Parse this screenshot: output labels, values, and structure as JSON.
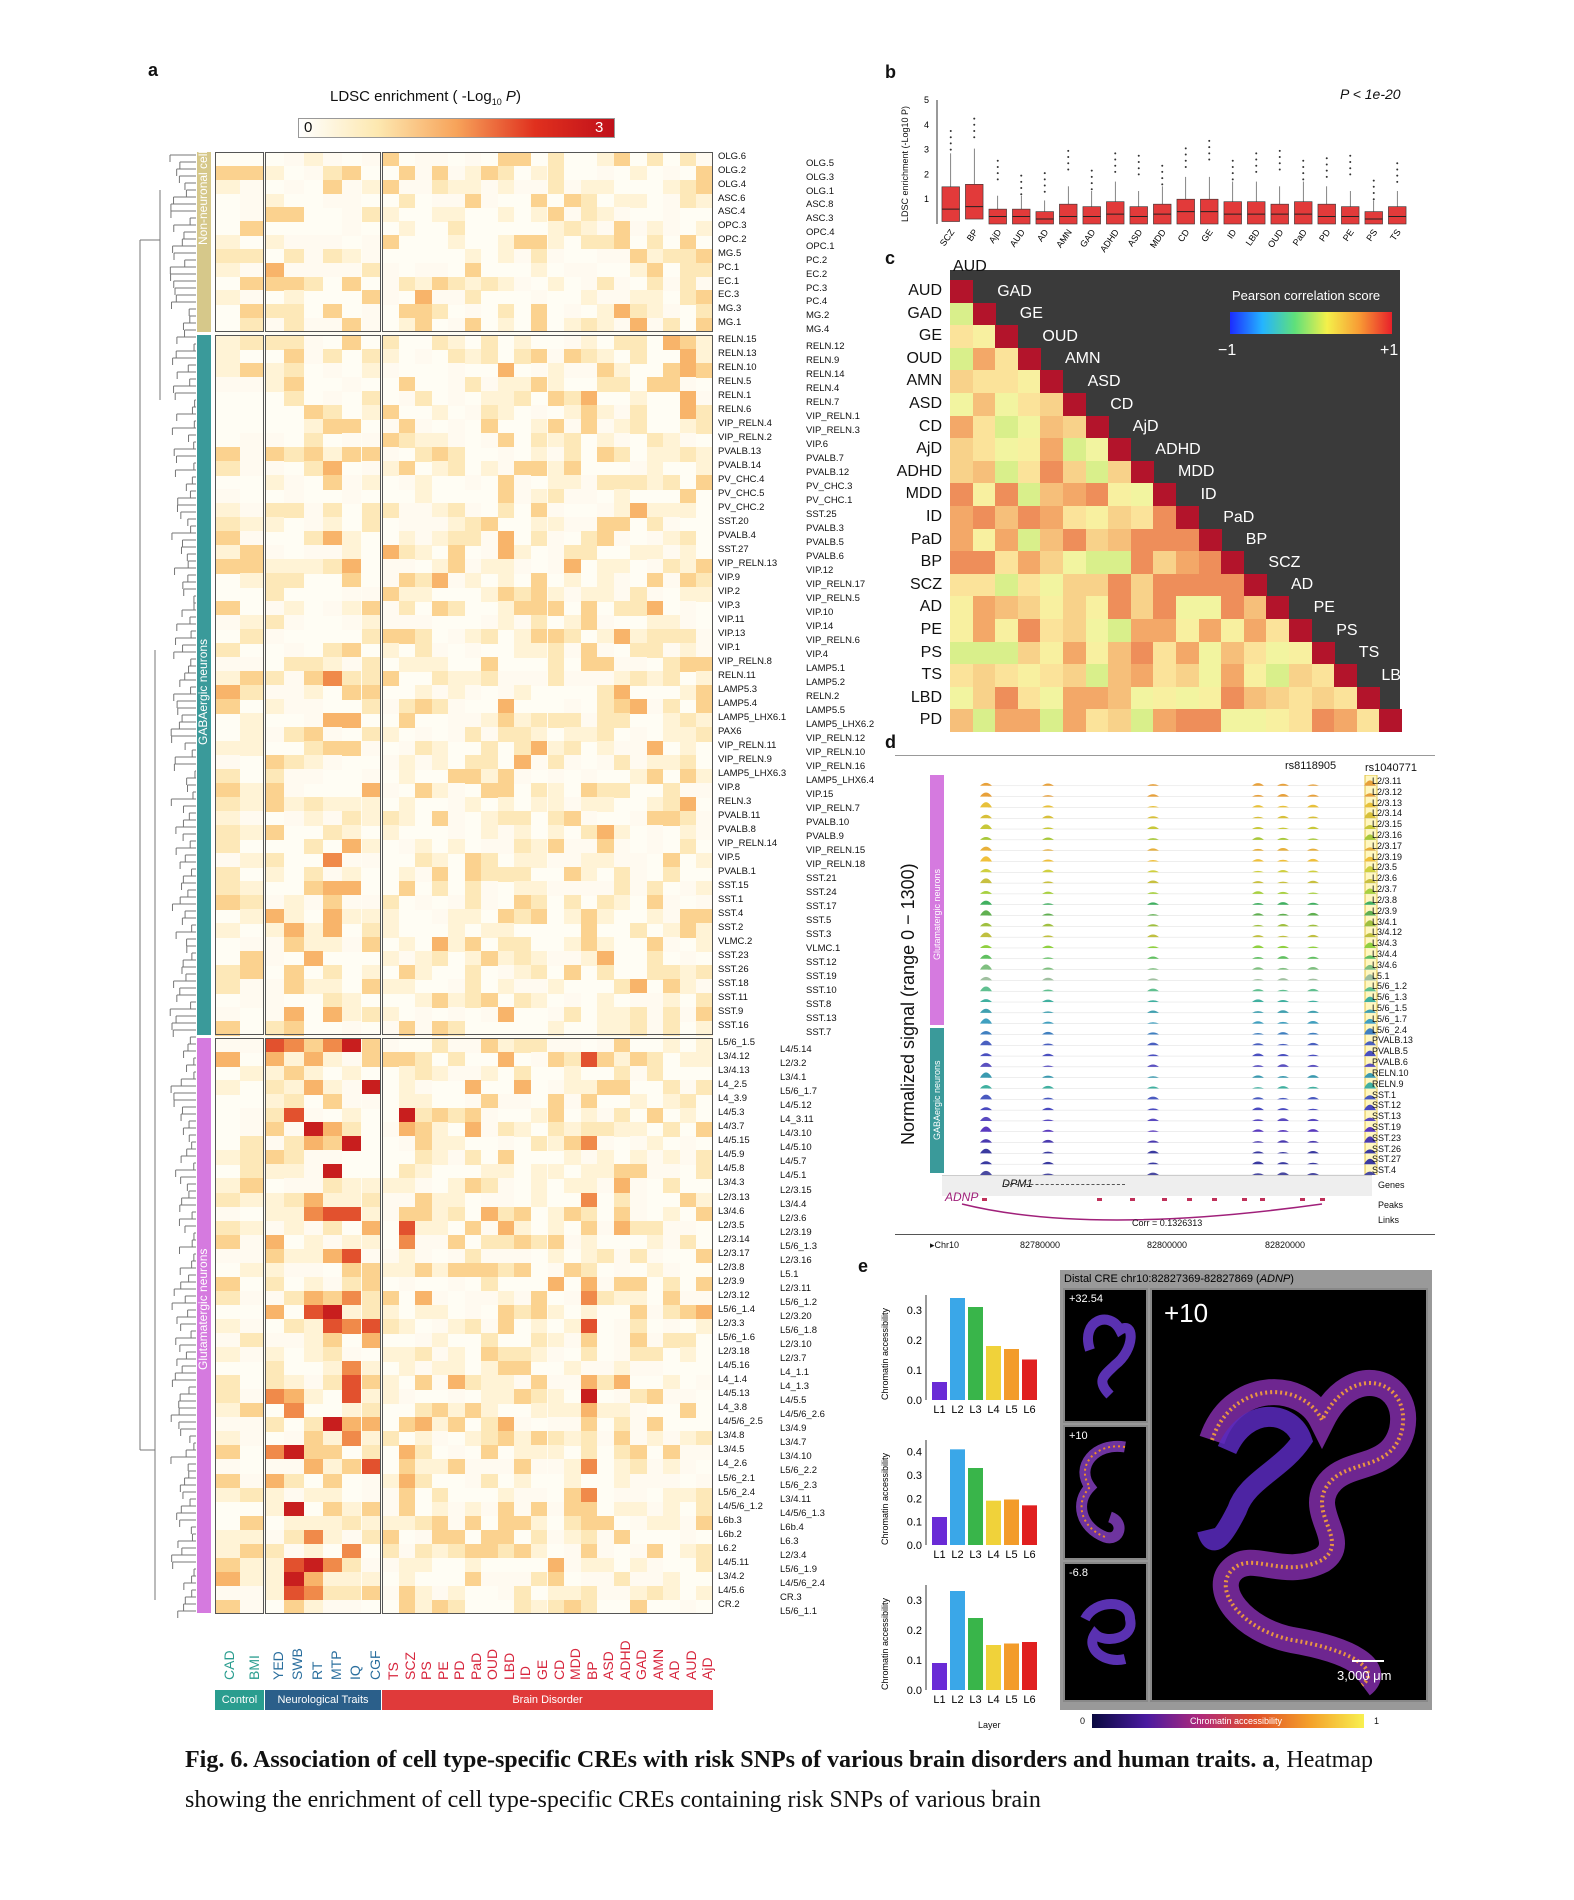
{
  "panels": {
    "a": "a",
    "b": "b",
    "c": "c",
    "d": "d",
    "e": "e"
  },
  "panel_a": {
    "legend_title": "LDSC enrichment ( -Log",
    "legend_sub": "10",
    "legend_p": "P",
    "legend_close": ")",
    "legend_min": "0",
    "legend_max": "3",
    "groups": [
      "Non-neuronal cells",
      "GABAergic neurons",
      "Glutamatergic neurons"
    ],
    "group_colors": [
      "#d6c88a",
      "#3a9a9a",
      "#d57adf"
    ],
    "columns": [
      "CAD",
      "BMI",
      "YED",
      "SWB",
      "RT",
      "MTP",
      "IQ",
      "CGF",
      "TS",
      "SCZ",
      "PS",
      "PE",
      "PD",
      "PaD",
      "OUD",
      "LBD",
      "ID",
      "GE",
      "CD",
      "MDD",
      "BP",
      "ASD",
      "ADHD",
      "GAD",
      "AMN",
      "AD",
      "AUD",
      "AjD"
    ],
    "column_colors": {
      "control": "#2a9d8f",
      "neuro": "#2b6f9e",
      "disorder": "#d7263d"
    },
    "categories": [
      {
        "label": "Control",
        "color": "#2a9d8f"
      },
      {
        "label": "Neurological Traits",
        "color": "#2b5f8a"
      },
      {
        "label": "Brain Disorder",
        "color": "#e03a3a"
      }
    ],
    "labels_left_nonneuronal": [
      "OLG.6",
      "OLG.2",
      "OLG.4",
      "ASC.6",
      "ASC.4",
      "OPC.3",
      "OPC.2",
      "MG.5",
      "PC.1",
      "EC.1",
      "EC.3",
      "MG.3",
      "MG.1"
    ],
    "labels_right_nonneuronal": [
      "OLG.5",
      "OLG.3",
      "OLG.1",
      "ASC.8",
      "ASC.3",
      "OPC.4",
      "OPC.1",
      "PC.2",
      "EC.2",
      "PC.3",
      "PC.4",
      "MG.2",
      "MG.4"
    ],
    "labels_left_gaba": [
      "RELN.15",
      "RELN.13",
      "RELN.10",
      "RELN.5",
      "RELN.1",
      "RELN.6",
      "VIP_RELN.4",
      "VIP_RELN.2",
      "PVALB.13",
      "PVALB.14",
      "PV_CHC.4",
      "PV_CHC.5",
      "PV_CHC.2",
      "SST.20",
      "PVALB.4",
      "SST.27",
      "VIP_RELN.13",
      "VIP.9",
      "VIP.2",
      "VIP.3",
      "VIP.11",
      "VIP.13",
      "VIP.1",
      "VIP_RELN.8",
      "RELN.11",
      "LAMP5.3",
      "LAMP5.4",
      "LAMP5_LHX6.1",
      "PAX6",
      "VIP_RELN.11",
      "VIP_RELN.9",
      "LAMP5_LHX6.3",
      "VIP.8",
      "RELN.3",
      "PVALB.11",
      "PVALB.8",
      "VIP_RELN.14",
      "VIP.5",
      "PVALB.1",
      "SST.15",
      "SST.1",
      "SST.4",
      "SST.2",
      "VLMC.2",
      "SST.23",
      "SST.26",
      "SST.18",
      "SST.11",
      "SST.9",
      "SST.16"
    ],
    "labels_right_gaba": [
      "RELN.12",
      "RELN.9",
      "RELN.14",
      "RELN.4",
      "RELN.7",
      "VIP_RELN.1",
      "VIP_RELN.3",
      "VIP.6",
      "PVALB.7",
      "PVALB.12",
      "PV_CHC.3",
      "PV_CHC.1",
      "SST.25",
      "PVALB.3",
      "PVALB.5",
      "PVALB.6",
      "VIP.12",
      "VIP_RELN.17",
      "VIP_RELN.5",
      "VIP.10",
      "VIP.14",
      "VIP_RELN.6",
      "VIP.4",
      "LAMP5.1",
      "LAMP5.2",
      "RELN.2",
      "LAMP5.5",
      "LAMP5_LHX6.2",
      "VIP_RELN.12",
      "VIP_RELN.10",
      "VIP_RELN.16",
      "LAMP5_LHX6.4",
      "VIP.15",
      "VIP_RELN.7",
      "PVALB.10",
      "PVALB.9",
      "VIP_RELN.15",
      "VIP_RELN.18",
      "SST.21",
      "SST.24",
      "SST.17",
      "SST.5",
      "SST.3",
      "VLMC.1",
      "SST.12",
      "SST.19",
      "SST.10",
      "SST.8",
      "SST.13",
      "SST.7"
    ],
    "labels_left_glut": [
      "L5/6_1.5",
      "L3/4.12",
      "L3/4.13",
      "L4_2.5",
      "L4_3.9",
      "L4/5.3",
      "L4/3.7",
      "L4/5.15",
      "L4/5.9",
      "L4/5.8",
      "L3/4.3",
      "L2/3.13",
      "L3/4.6",
      "L2/3.5",
      "L2/3.14",
      "L2/3.17",
      "L2/3.8",
      "L2/3.9",
      "L2/3.12",
      "L5/6_1.4",
      "L2/3.3",
      "L5/6_1.6",
      "L2/3.18",
      "L4/5.16",
      "L4_1.4",
      "L4/5.13",
      "L4_3.8",
      "L4/5/6_2.5",
      "L3/4.8",
      "L3/4.5",
      "L4_2.6",
      "L5/6_2.1",
      "L5/6_2.4",
      "L4/5/6_1.2",
      "L6b.3",
      "L6b.2",
      "L6.2",
      "L4/5.11",
      "L3/4.2",
      "L4/5.6",
      "CR.2"
    ],
    "labels_right_glut": [
      "L4/5.14",
      "L2/3.2",
      "L3/4.1",
      "L5/6_1.7",
      "L4/5.12",
      "L4_3.11",
      "L4/3.10",
      "L4/5.10",
      "L4/5.7",
      "L4/5.1",
      "L2/3.15",
      "L3/4.4",
      "L2/3.6",
      "L2/3.19",
      "L5/6_1.3",
      "L2/3.16",
      "L5.1",
      "L2/3.11",
      "L5/6_1.2",
      "L2/3.20",
      "L5/6_1.8",
      "L2/3.10",
      "L2/3.7",
      "L4_1.1",
      "L4_1.3",
      "L4/5.5",
      "L4/5/6_2.6",
      "L3/4.9",
      "L3/4.7",
      "L3/4.10",
      "L5/6_2.2",
      "L5/6_2.3",
      "L3/4.11",
      "L4/5/6_1.3",
      "L6b.4",
      "L6.3",
      "L2/3.4",
      "L5/6_1.9",
      "L4/5/6_2.4",
      "CR.3",
      "L5/6_1.1"
    ]
  },
  "panel_b": {
    "annotation": "P < 1e-20",
    "ylabel": "LDSC enrichment (-Log10 P)",
    "yticks": [
      "5",
      "4",
      "3",
      "2",
      "1"
    ],
    "chart_data": {
      "type": "box",
      "categories": [
        "SCZ",
        "BP",
        "AjD",
        "AUD",
        "AD",
        "AMN",
        "GAD",
        "ADHD",
        "ASD",
        "MDD",
        "CD",
        "GE",
        "ID",
        "LBD",
        "OUD",
        "PaD",
        "PD",
        "PE",
        "PS",
        "TS"
      ],
      "medians": [
        0.6,
        0.7,
        0.3,
        0.3,
        0.2,
        0.3,
        0.3,
        0.4,
        0.3,
        0.4,
        0.5,
        0.5,
        0.4,
        0.4,
        0.4,
        0.4,
        0.3,
        0.3,
        0.2,
        0.3
      ],
      "q1": [
        0.1,
        0.2,
        0.0,
        0.0,
        0.0,
        0.0,
        0.0,
        0.0,
        0.0,
        0.0,
        0.0,
        0.0,
        0.0,
        0.0,
        0.0,
        0.0,
        0.0,
        0.0,
        0.0,
        0.0
      ],
      "q3": [
        1.5,
        1.6,
        0.6,
        0.6,
        0.5,
        0.8,
        0.7,
        0.9,
        0.7,
        0.8,
        1.0,
        1.0,
        0.9,
        0.9,
        0.8,
        0.9,
        0.8,
        0.7,
        0.5,
        0.7
      ],
      "ylim": [
        0,
        5
      ]
    }
  },
  "panel_c": {
    "legend_title": "Pearson correlation score",
    "legend_min": "−1",
    "legend_max": "+1",
    "chart_data": {
      "type": "heatmap",
      "labels": [
        "AUD",
        "GAD",
        "GE",
        "OUD",
        "AMN",
        "ASD",
        "CD",
        "AjD",
        "ADHD",
        "MDD",
        "ID",
        "PaD",
        "BP",
        "SCZ",
        "AD",
        "PE",
        "PS",
        "TS",
        "LBD",
        "PD"
      ]
    }
  },
  "panel_d": {
    "snp1": "rs8118905",
    "snp2": "rs1040771",
    "ylabel": "Normalized signal (range 0 − 1300)",
    "group1": "Glutamatergic neurons",
    "group2": "GABAergic neurons",
    "tracks": [
      "L2/3.11",
      "L2/3.12",
      "L2/3.13",
      "L2/3.14",
      "L2/3.15",
      "L2/3.16",
      "L2/3.17",
      "L2/3.19",
      "L2/3.5",
      "L2/3.6",
      "L2/3.7",
      "L2/3.8",
      "L2/3.9",
      "L3/4.1",
      "L3/4.12",
      "L3/4.3",
      "L3/4.4",
      "L3/4.6",
      "L5.1",
      "L5/6_1.2",
      "L5/6_1.3",
      "L5/6_1.5",
      "L5/6_1.7",
      "L5/6_2.4",
      "PVALB.13",
      "PVALB.5",
      "PVALB.6",
      "RELN.10",
      "RELN.9",
      "SST.1",
      "SST.12",
      "SST.13",
      "SST.19",
      "SST.23",
      "SST.26",
      "SST.27",
      "SST.4"
    ],
    "genes_label": "Genes",
    "peaks_label": "Peaks",
    "links_label": "Links",
    "gene1": "ADNP",
    "gene2": "DPM1",
    "corr": "Corr = 0.1326313",
    "chrom": "Chr10",
    "coords": [
      "82780000",
      "82800000",
      "82820000"
    ]
  },
  "panel_e": {
    "ylabel": "Chromatin accessibility",
    "xlabel": "Layer",
    "layers": [
      "L1",
      "L2",
      "L3",
      "L4",
      "L5",
      "L6"
    ],
    "bar_colors": [
      "#6a2bd6",
      "#3aa7e8",
      "#39b54a",
      "#f0d23a",
      "#f39c2a",
      "#e02020"
    ],
    "charts": [
      {
        "values": [
          0.06,
          0.34,
          0.31,
          0.18,
          0.17,
          0.135
        ],
        "yticks": [
          "0.3",
          "0.2",
          "0.1",
          "0.0"
        ],
        "ymax": 0.35
      },
      {
        "values": [
          0.12,
          0.41,
          0.33,
          0.19,
          0.195,
          0.17
        ],
        "yticks": [
          "0.4",
          "0.3",
          "0.2",
          "0.1",
          "0.0"
        ],
        "ymax": 0.45
      },
      {
        "values": [
          0.09,
          0.33,
          0.24,
          0.15,
          0.155,
          0.16
        ],
        "yticks": [
          "0.3",
          "0.2",
          "0.1",
          "0.0"
        ],
        "ymax": 0.35
      }
    ],
    "micro_title": "Distal CRE chr10:82827369-82827869 (",
    "micro_gene": "ADNP",
    "micro_title_end": ")",
    "thumbs": [
      "+32.54",
      "+10",
      "-6.8"
    ],
    "big_label": "+10",
    "scalebar": "3,000 μm",
    "cbar_min": "0",
    "cbar_max": "1",
    "cbar_label": "Chromatin accessibility"
  },
  "caption": {
    "bold": "Fig. 6. Association of cell type-specific CREs with risk SNPs of various brain disorders and human traits. a",
    "rest": ", Heatmap showing the enrichment of cell type-specific CREs containing risk SNPs of various brain"
  }
}
